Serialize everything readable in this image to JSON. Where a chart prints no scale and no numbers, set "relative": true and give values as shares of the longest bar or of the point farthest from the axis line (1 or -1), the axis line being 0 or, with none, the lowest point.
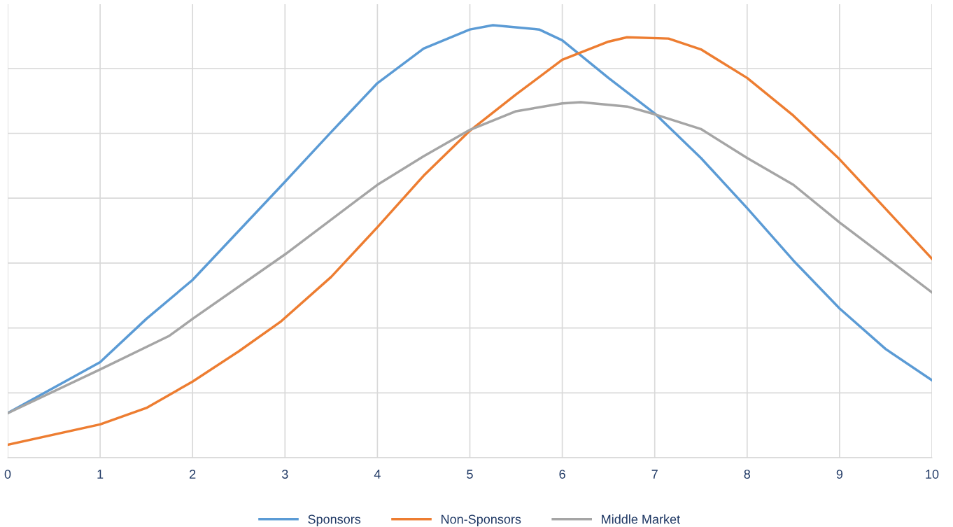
{
  "chart_data": {
    "type": "line",
    "relative": true,
    "xlim": [
      0,
      10
    ],
    "xticks": [
      0,
      1,
      2,
      3,
      4,
      5,
      6,
      7,
      8,
      9,
      10
    ],
    "grid": true,
    "legend": "bottom",
    "marker": "none",
    "line_style": "solid",
    "series": [
      {
        "name": "Sponsors",
        "color": "#5b9bd5",
        "x": [
          0,
          1,
          1.5,
          2,
          3,
          3.5,
          4,
          4.5,
          5,
          5.25,
          5.75,
          6,
          6.5,
          7,
          7.5,
          8,
          8.5,
          9,
          9.5,
          10
        ],
        "values": [
          0.103,
          0.221,
          0.321,
          0.411,
          0.638,
          0.753,
          0.866,
          0.946,
          0.99,
          1.0,
          0.99,
          0.965,
          0.878,
          0.796,
          0.693,
          0.577,
          0.456,
          0.345,
          0.251,
          0.179
        ]
      },
      {
        "name": "Non-Sponsors",
        "color": "#ed7d31",
        "x": [
          0,
          1,
          1.5,
          2,
          2.5,
          2.95,
          3.5,
          4,
          4.5,
          5,
          5.5,
          6,
          6.5,
          6.7,
          7.15,
          7.5,
          8,
          8.5,
          9,
          9.5,
          10
        ],
        "values": [
          0.03,
          0.077,
          0.115,
          0.176,
          0.246,
          0.314,
          0.418,
          0.533,
          0.652,
          0.756,
          0.84,
          0.92,
          0.962,
          0.972,
          0.969,
          0.944,
          0.878,
          0.791,
          0.69,
          0.575,
          0.46
        ]
      },
      {
        "name": "Middle Market",
        "color": "#a5a5a5",
        "x": [
          0,
          1,
          1.75,
          2,
          3,
          4,
          4.5,
          5,
          5.5,
          6,
          6.2,
          6.7,
          7,
          7.5,
          8,
          8.5,
          9,
          9.5,
          10
        ],
        "values": [
          0.103,
          0.204,
          0.282,
          0.321,
          0.47,
          0.631,
          0.697,
          0.758,
          0.801,
          0.819,
          0.822,
          0.812,
          0.794,
          0.76,
          0.693,
          0.631,
          0.544,
          0.463,
          0.382
        ]
      }
    ]
  }
}
